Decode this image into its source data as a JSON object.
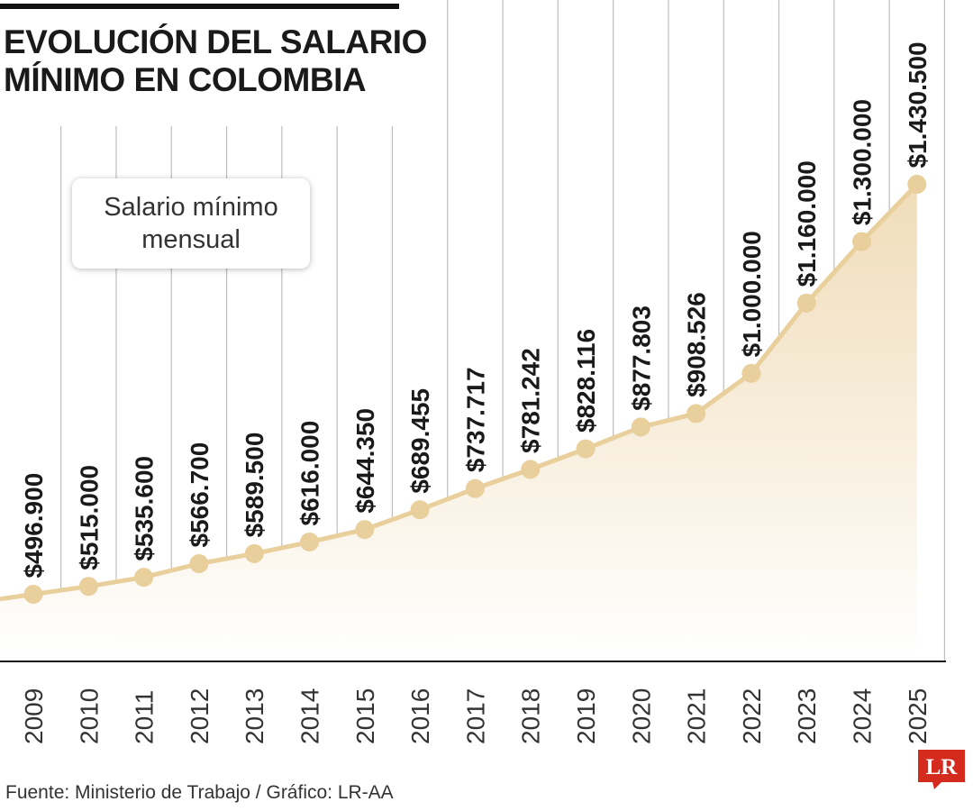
{
  "title_line1": "EVOLUCIÓN DEL SALARIO",
  "title_line2": "MÍNIMO EN COLOMBIA",
  "legend_text": "Salario mínimo mensual",
  "source": "Fuente: Ministerio de Trabajo / Gráfico: LR-AA",
  "logo_text": "LR",
  "colors": {
    "line": "#e8cf9b",
    "point": "#e8cf9b",
    "fill_top": "#f0dcb8",
    "grid": "#bdbdbd",
    "text": "#1a1a1a",
    "logo": "#d52b1e"
  },
  "chart_data": {
    "type": "line",
    "series": [
      {
        "name": "Salario mínimo mensual",
        "x": [
          "2009",
          "2010",
          "2011",
          "2012",
          "2013",
          "2014",
          "2015",
          "2016",
          "2017",
          "2018",
          "2019",
          "2020",
          "2021",
          "2022",
          "2023",
          "2024",
          "2025"
        ],
        "values": [
          496900,
          515000,
          535600,
          566700,
          589500,
          616000,
          644350,
          689455,
          737717,
          781242,
          828116,
          877803,
          908526,
          1000000,
          1160000,
          1300000,
          1430500
        ],
        "labels": [
          "$496.900",
          "$515.000",
          "$535.600",
          "$566.700",
          "$589.500",
          "$616.000",
          "$644.350",
          "$689.455",
          "$737.717",
          "$781.242",
          "$828.116",
          "$877.803",
          "$908.526",
          "$1.000.000",
          "$1.160.000",
          "$1.300.000",
          "$1.430.500"
        ]
      }
    ],
    "title": "EVOLUCIÓN DEL SALARIO MÍNIMO EN COLOMBIA",
    "xlabel": "",
    "ylabel": "",
    "grid": "vertical",
    "area_fill": true
  }
}
